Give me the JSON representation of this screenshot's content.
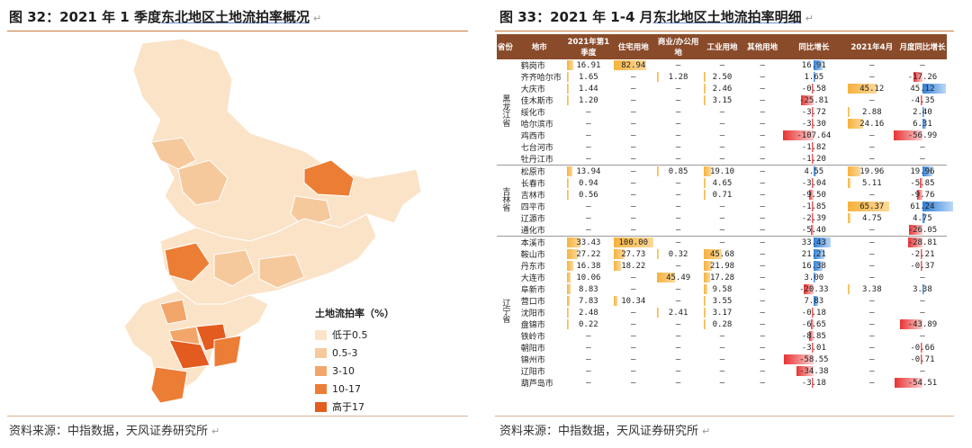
{
  "left": {
    "title_prefix": "图 32：2021 年 1 季度",
    "title_underlined": "东北地区土地流拍率概况",
    "source": "资料来源：中指数据，天风证券研究所",
    "legend": {
      "title": "土地流拍率（%）",
      "items": [
        {
          "label": "低于0.5",
          "color": "#fbe3c8"
        },
        {
          "label": "0.5-3",
          "color": "#f6c99d"
        },
        {
          "label": "3-10",
          "color": "#f2a66a"
        },
        {
          "label": "10-17",
          "color": "#ec7d35"
        },
        {
          "label": "高于17",
          "color": "#e45b1f"
        }
      ]
    }
  },
  "right": {
    "title_prefix": "图 33：2021 年 1-4 月",
    "title_underlined": "东北地区土地流拍率明细",
    "source": "资料来源：中指数据，天风证券研究所",
    "headers": [
      "省份",
      "地市",
      "2021年第1季度",
      "住宅用地",
      "商业/办公用地",
      "工业用地",
      "其他用地",
      "同比增长",
      "2021年4月",
      "月度同比增长"
    ],
    "groups": [
      {
        "name": "黑龙江省",
        "rows": [
          [
            "鹤岗市",
            "16.91",
            "82.94",
            "–",
            "–",
            "–",
            "16.91",
            "–",
            "–"
          ],
          [
            "齐齐哈尔市",
            "1.65",
            "–",
            "1.28",
            "2.50",
            "–",
            "1.65",
            "–",
            "-17.26"
          ],
          [
            "大庆市",
            "1.44",
            "–",
            "–",
            "2.46",
            "–",
            "-0.58",
            "45.12",
            "45.12"
          ],
          [
            "佳木斯市",
            "1.20",
            "–",
            "–",
            "3.15",
            "–",
            "-25.81",
            "–",
            "-4.35"
          ],
          [
            "绥化市",
            "–",
            "–",
            "–",
            "–",
            "–",
            "-3.72",
            "2.88",
            "2.40"
          ],
          [
            "哈尔滨市",
            "–",
            "–",
            "–",
            "–",
            "–",
            "-3.30",
            "24.16",
            "6.31"
          ],
          [
            "鸡西市",
            "–",
            "–",
            "–",
            "–",
            "–",
            "-107.64",
            "–",
            "-56.99"
          ],
          [
            "七台河市",
            "–",
            "–",
            "–",
            "–",
            "–",
            "-1.82",
            "–",
            "–"
          ],
          [
            "牡丹江市",
            "–",
            "–",
            "–",
            "–",
            "–",
            "-1.20",
            "–",
            "–"
          ]
        ]
      },
      {
        "name": "吉林省",
        "rows": [
          [
            "松原市",
            "13.94",
            "–",
            "0.85",
            "19.10",
            "–",
            "4.55",
            "19.96",
            "19.96"
          ],
          [
            "长春市",
            "0.94",
            "–",
            "–",
            "4.65",
            "–",
            "-3.04",
            "5.11",
            "-5.85"
          ],
          [
            "吉林市",
            "0.56",
            "–",
            "–",
            "0.71",
            "–",
            "-9.50",
            "–",
            "-9.76"
          ],
          [
            "四平市",
            "–",
            "–",
            "–",
            "–",
            "–",
            "-1.85",
            "65.37",
            "61.24"
          ],
          [
            "辽源市",
            "–",
            "–",
            "–",
            "–",
            "–",
            "-2.39",
            "4.75",
            "4.75"
          ],
          [
            "通化市",
            "–",
            "–",
            "–",
            "–",
            "–",
            "-5.40",
            "–",
            "-26.05"
          ]
        ]
      },
      {
        "name": "辽宁省",
        "rows": [
          [
            "本溪市",
            "33.43",
            "100.00",
            "–",
            "–",
            "–",
            "33.43",
            "–",
            "-28.81"
          ],
          [
            "鞍山市",
            "27.22",
            "27.73",
            "0.32",
            "45.68",
            "–",
            "21.21",
            "–",
            "-2.21"
          ],
          [
            "丹东市",
            "16.38",
            "18.22",
            "–",
            "21.98",
            "–",
            "16.38",
            "–",
            "-0.37"
          ],
          [
            "大连市",
            "10.06",
            "–",
            "45.49",
            "17.28",
            "–",
            "3.00",
            "–",
            "–"
          ],
          [
            "阜新市",
            "8.83",
            "–",
            "–",
            "9.58",
            "–",
            "-20.33",
            "3.38",
            "3.38"
          ],
          [
            "营口市",
            "7.83",
            "10.34",
            "–",
            "3.55",
            "–",
            "7.83",
            "–",
            "–"
          ],
          [
            "沈阳市",
            "2.48",
            "–",
            "2.41",
            "3.17",
            "–",
            "-0.18",
            "–",
            "–"
          ],
          [
            "盘锦市",
            "0.22",
            "–",
            "–",
            "0.28",
            "–",
            "-6.65",
            "–",
            "-43.89"
          ],
          [
            "铁岭市",
            "–",
            "–",
            "–",
            "–",
            "–",
            "-8.85",
            "–",
            "–"
          ],
          [
            "朝阳市",
            "–",
            "–",
            "–",
            "–",
            "–",
            "-3.01",
            "–",
            "-0.66"
          ],
          [
            "锦州市",
            "–",
            "–",
            "–",
            "–",
            "–",
            "-58.55",
            "–",
            "-0.71"
          ],
          [
            "辽阳市",
            "–",
            "–",
            "–",
            "–",
            "–",
            "-34.38",
            "–",
            "–"
          ],
          [
            "葫芦岛市",
            "–",
            "–",
            "–",
            "–",
            "–",
            "-3.18",
            "–",
            "-54.51"
          ]
        ]
      }
    ]
  }
}
